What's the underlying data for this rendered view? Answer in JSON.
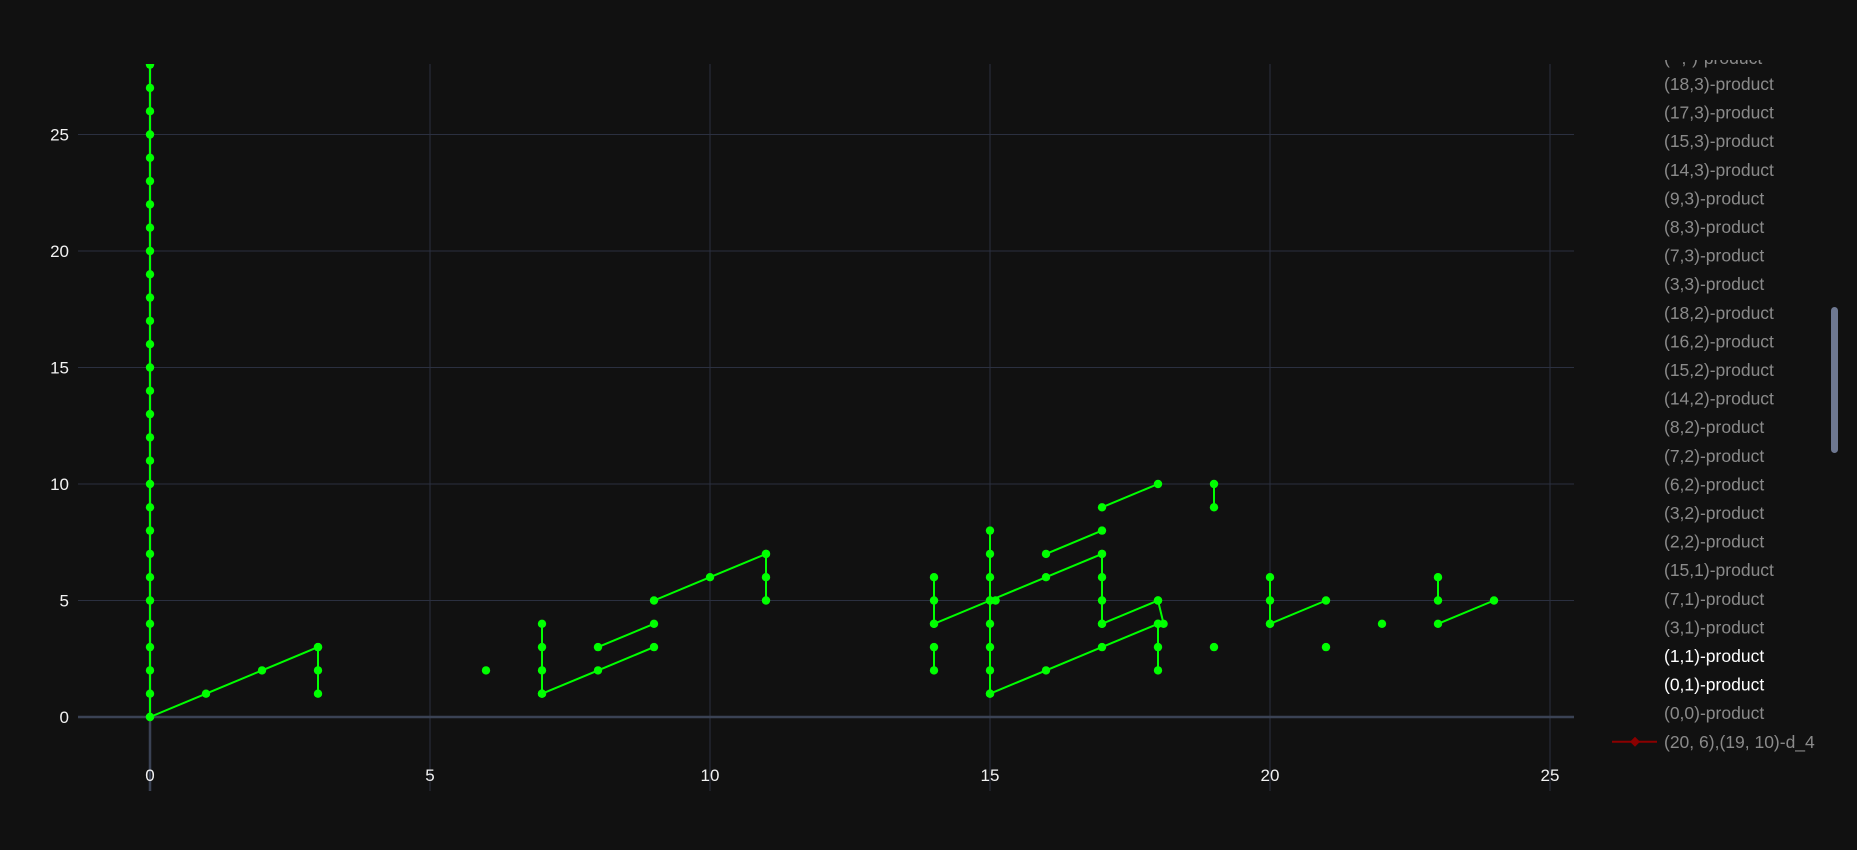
{
  "chart_data": {
    "type": "line",
    "title": "",
    "xlabel": "",
    "ylabel": "",
    "xlim": [
      -2.6,
      25.4
    ],
    "ylim": [
      -2.6,
      28
    ],
    "x_ticks": [
      0,
      5,
      10,
      15,
      20,
      25
    ],
    "y_ticks": [
      0,
      5,
      10,
      15,
      20,
      25
    ],
    "grid": true,
    "legend_placement": "right",
    "colors": {
      "background": "#111111",
      "grid": "#2b3040",
      "zeroline": "#3a4254",
      "series": "#00ff00",
      "highlight": "#8b0000"
    },
    "series": [
      {
        "points": [
          [
            0,
            0
          ],
          [
            0,
            1
          ],
          [
            0,
            2
          ],
          [
            0,
            3
          ],
          [
            0,
            4
          ],
          [
            0,
            5
          ],
          [
            0,
            6
          ],
          [
            0,
            7
          ],
          [
            0,
            8
          ],
          [
            0,
            9
          ],
          [
            0,
            10
          ],
          [
            0,
            11
          ],
          [
            0,
            12
          ],
          [
            0,
            13
          ],
          [
            0,
            14
          ],
          [
            0,
            15
          ],
          [
            0,
            16
          ],
          [
            0,
            17
          ],
          [
            0,
            18
          ],
          [
            0,
            19
          ],
          [
            0,
            20
          ],
          [
            0,
            21
          ],
          [
            0,
            22
          ],
          [
            0,
            23
          ],
          [
            0,
            24
          ],
          [
            0,
            25
          ],
          [
            0,
            26
          ],
          [
            0,
            27
          ],
          [
            0,
            28
          ]
        ]
      },
      {
        "points": [
          [
            0,
            0
          ],
          [
            1,
            1
          ],
          [
            2,
            2
          ],
          [
            3,
            3
          ]
        ]
      },
      {
        "points": [
          [
            3,
            3
          ],
          [
            3,
            2
          ],
          [
            3,
            1
          ]
        ]
      },
      {
        "points": [
          [
            6,
            2
          ]
        ]
      },
      {
        "points": [
          [
            7,
            1
          ],
          [
            8,
            2
          ],
          [
            9,
            3
          ]
        ]
      },
      {
        "points": [
          [
            7,
            4
          ],
          [
            7,
            3
          ],
          [
            7,
            2
          ],
          [
            7,
            1
          ]
        ]
      },
      {
        "points": [
          [
            8,
            3
          ],
          [
            9,
            4
          ]
        ]
      },
      {
        "points": [
          [
            9,
            5
          ],
          [
            10,
            6
          ],
          [
            11,
            7
          ]
        ]
      },
      {
        "points": [
          [
            11,
            7
          ],
          [
            11,
            6
          ],
          [
            11,
            5
          ]
        ]
      },
      {
        "points": [
          [
            14,
            6
          ],
          [
            14,
            5
          ],
          [
            14,
            4
          ]
        ]
      },
      {
        "points": [
          [
            14,
            3
          ],
          [
            14,
            2
          ]
        ]
      },
      {
        "points": [
          [
            14,
            4
          ],
          [
            15,
            5
          ],
          [
            16,
            6
          ],
          [
            17,
            7
          ]
        ]
      },
      {
        "points": [
          [
            15,
            8
          ],
          [
            15,
            7
          ],
          [
            15,
            6
          ],
          [
            15,
            5
          ],
          [
            15,
            4
          ],
          [
            15,
            3
          ],
          [
            15,
            2
          ],
          [
            15,
            1
          ]
        ]
      },
      {
        "points": [
          [
            15,
            1
          ],
          [
            16,
            2
          ],
          [
            17,
            3
          ],
          [
            18,
            4
          ]
        ]
      },
      {
        "points": [
          [
            15.1,
            5
          ]
        ]
      },
      {
        "points": [
          [
            16,
            7
          ],
          [
            17,
            8
          ]
        ]
      },
      {
        "points": [
          [
            17,
            7
          ],
          [
            17,
            6
          ],
          [
            17,
            5
          ],
          [
            17,
            4
          ]
        ]
      },
      {
        "points": [
          [
            17,
            4
          ],
          [
            18,
            5
          ]
        ]
      },
      {
        "points": [
          [
            18,
            5
          ],
          [
            18.1,
            4
          ]
        ]
      },
      {
        "points": [
          [
            17,
            9
          ],
          [
            18,
            10
          ]
        ]
      },
      {
        "points": [
          [
            18,
            4
          ],
          [
            18,
            3
          ],
          [
            18,
            2
          ]
        ]
      },
      {
        "points": [
          [
            19,
            10
          ],
          [
            19,
            9
          ]
        ]
      },
      {
        "points": [
          [
            19,
            3
          ]
        ]
      },
      {
        "points": [
          [
            20,
            6
          ],
          [
            20,
            5
          ],
          [
            20,
            4
          ]
        ]
      },
      {
        "points": [
          [
            20,
            4
          ],
          [
            21,
            5
          ]
        ]
      },
      {
        "points": [
          [
            21,
            3
          ]
        ]
      },
      {
        "points": [
          [
            22,
            4
          ]
        ]
      },
      {
        "points": [
          [
            23,
            6
          ],
          [
            23,
            5
          ]
        ]
      },
      {
        "points": [
          [
            23,
            4
          ],
          [
            24,
            5
          ]
        ]
      }
    ],
    "legend": [
      {
        "name": "(18,3)-product",
        "active": false
      },
      {
        "name": "(17,3)-product",
        "active": false
      },
      {
        "name": "(15,3)-product",
        "active": false
      },
      {
        "name": "(14,3)-product",
        "active": false
      },
      {
        "name": "(9,3)-product",
        "active": false
      },
      {
        "name": "(8,3)-product",
        "active": false
      },
      {
        "name": "(7,3)-product",
        "active": false
      },
      {
        "name": "(3,3)-product",
        "active": false
      },
      {
        "name": "(18,2)-product",
        "active": false
      },
      {
        "name": "(16,2)-product",
        "active": false
      },
      {
        "name": "(15,2)-product",
        "active": false
      },
      {
        "name": "(14,2)-product",
        "active": false
      },
      {
        "name": "(8,2)-product",
        "active": false
      },
      {
        "name": "(7,2)-product",
        "active": false
      },
      {
        "name": "(6,2)-product",
        "active": false
      },
      {
        "name": "(3,2)-product",
        "active": false
      },
      {
        "name": "(2,2)-product",
        "active": false
      },
      {
        "name": "(15,1)-product",
        "active": false
      },
      {
        "name": "(7,1)-product",
        "active": false
      },
      {
        "name": "(3,1)-product",
        "active": false
      },
      {
        "name": "(1,1)-product",
        "active": true
      },
      {
        "name": "(0,1)-product",
        "active": true
      },
      {
        "name": "(0,0)-product",
        "active": false
      },
      {
        "name": "(20, 6),(19, 10)-d_4",
        "active": false,
        "marker": true
      }
    ]
  }
}
